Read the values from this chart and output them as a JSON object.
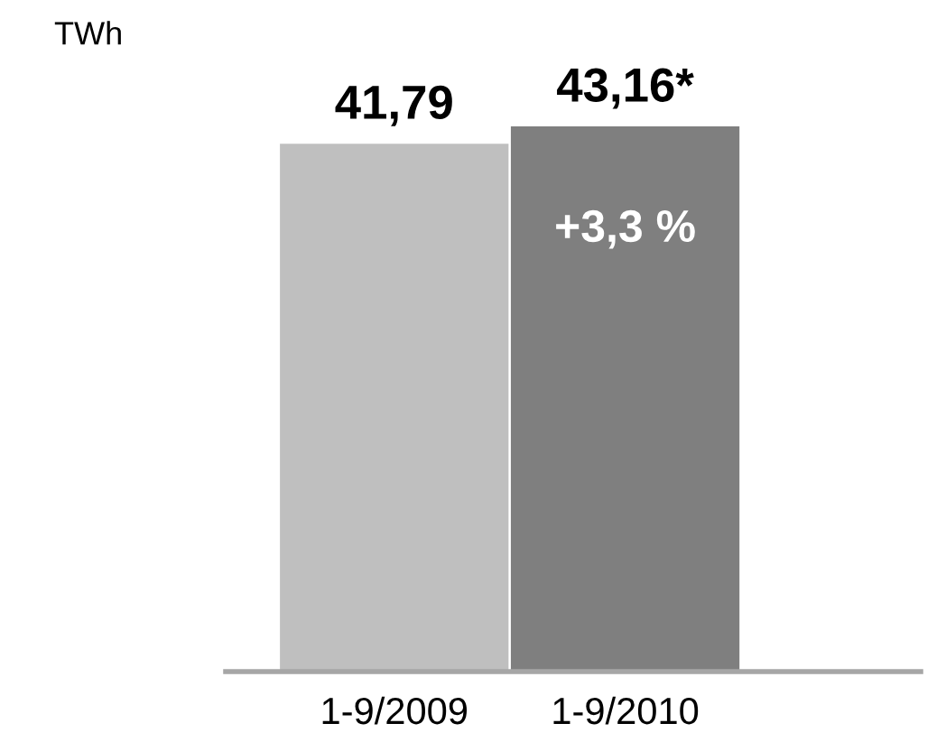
{
  "chart_data": {
    "type": "bar",
    "ylabel": "TWh",
    "categories": [
      "1-9/2009",
      "1-9/2010"
    ],
    "values": [
      41.79,
      43.16
    ],
    "colors": [
      "#bfbfbf",
      "#7f7f7f"
    ],
    "value_labels": [
      "41,79",
      "43,16*"
    ],
    "annotations": [
      "+3,3 %"
    ],
    "grid": false,
    "legend": false
  }
}
